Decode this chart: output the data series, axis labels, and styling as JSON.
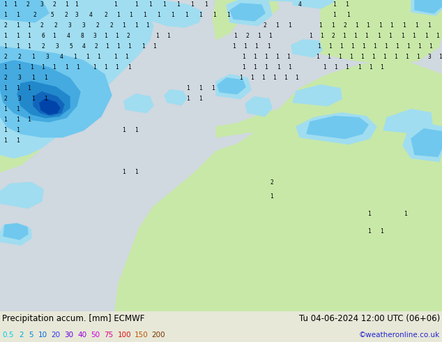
{
  "title_left": "Precipitation accum. [mm] ECMWF",
  "title_right": "Tu 04-06-2024 12:00 UTC (06+06)",
  "credit": "©weatheronline.co.uk",
  "legend_labels": [
    "0.5",
    "2",
    "5",
    "10",
    "20",
    "30",
    "40",
    "50",
    "75",
    "100",
    "150",
    "200"
  ],
  "legend_colors": [
    "#00ccee",
    "#00aadd",
    "#0088dd",
    "#0066dd",
    "#3333ee",
    "#6600dd",
    "#9900dd",
    "#cc00dd",
    "#dd0088",
    "#dd1111",
    "#bb5500",
    "#773300"
  ],
  "sea_color": "#d0d8e0",
  "land_color": "#c8e8a8",
  "precip_5_color": "#a0ddf0",
  "precip_10_color": "#70c8ee",
  "precip_20_color": "#44aae0",
  "precip_30_color": "#2288cc",
  "precip_40_color": "#1166bb",
  "precip_50_color": "#0044aa",
  "figsize": [
    6.34,
    4.9
  ],
  "dpi": 100,
  "bottom_bg": "#e8e8d8"
}
